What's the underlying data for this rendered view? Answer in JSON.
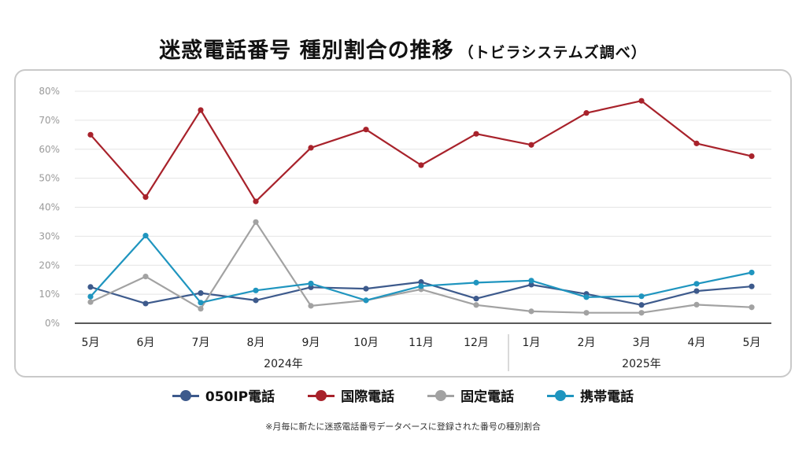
{
  "title": "迷惑電話番号 種別割合の推移",
  "subtitle": "（トビラシステムズ調べ）",
  "footnote": "※月毎に新たに迷惑電話番号データベースに登録された番号の種別割合",
  "chart_data": {
    "type": "line",
    "x": [
      "5月",
      "6月",
      "7月",
      "8月",
      "9月",
      "10月",
      "11月",
      "12月",
      "1月",
      "2月",
      "3月",
      "4月",
      "5月"
    ],
    "year_groups": [
      {
        "label": "2024年",
        "from": 0,
        "to": 7
      },
      {
        "label": "2025年",
        "from": 8,
        "to": 12
      }
    ],
    "yticks": [
      "0%",
      "10%",
      "20%",
      "30%",
      "40%",
      "50%",
      "60%",
      "70%",
      "80%"
    ],
    "ylim": [
      0,
      80
    ],
    "grid": true,
    "legend": "bottom",
    "series": [
      {
        "name": "050IP電話",
        "color": "#3d5a8c",
        "values": [
          12.5,
          6.8,
          10.4,
          7.9,
          12.4,
          11.9,
          14.2,
          8.5,
          13.3,
          10.1,
          6.3,
          11.1,
          12.7
        ]
      },
      {
        "name": "国際電話",
        "color": "#a8222b",
        "values": [
          65.0,
          43.5,
          73.5,
          42.0,
          60.5,
          66.8,
          54.5,
          65.3,
          61.5,
          72.5,
          76.7,
          62.0,
          57.6
        ]
      },
      {
        "name": "固定電話",
        "color": "#a2a2a2",
        "values": [
          7.3,
          16.1,
          5.0,
          34.9,
          6.0,
          7.9,
          11.7,
          6.3,
          4.1,
          3.6,
          3.6,
          6.4,
          5.5
        ]
      },
      {
        "name": "携帯電話",
        "color": "#1f95bf",
        "values": [
          9.2,
          30.2,
          7.1,
          11.3,
          13.7,
          7.9,
          12.8,
          14.0,
          14.7,
          9.0,
          9.3,
          13.6,
          17.5
        ]
      }
    ]
  }
}
